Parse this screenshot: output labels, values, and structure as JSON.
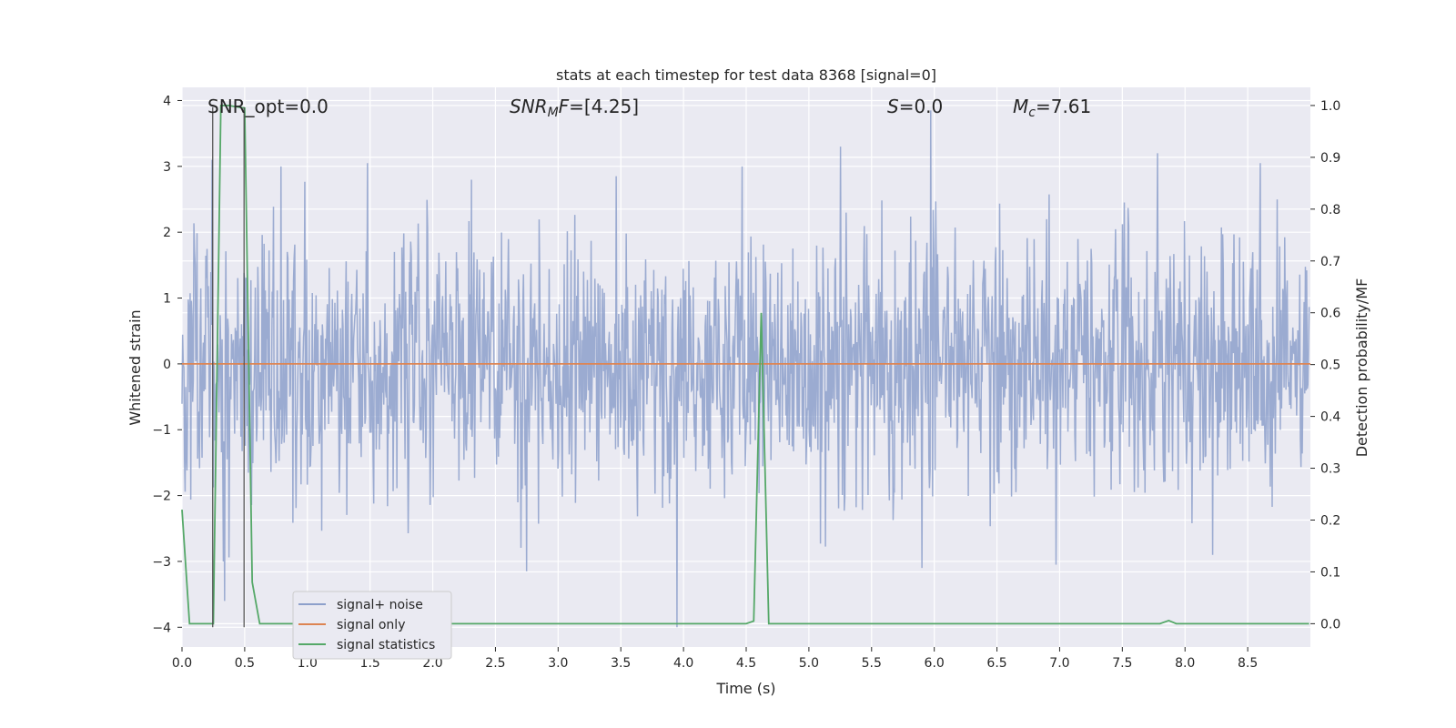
{
  "chart_data": {
    "type": "line",
    "title": "stats at each timestep for test data 8368 [signal=0]",
    "xlabel": "Time (s)",
    "ylabel": "Whitened strain",
    "y2label": "Detection probability/MF",
    "xlim": [
      0.0,
      9.0
    ],
    "ylim": [
      -4.3,
      4.2
    ],
    "y2lim": [
      -0.045,
      1.035
    ],
    "xticks": [
      0.0,
      0.5,
      1.0,
      1.5,
      2.0,
      2.5,
      3.0,
      3.5,
      4.0,
      4.5,
      5.0,
      5.5,
      6.0,
      6.5,
      7.0,
      7.5,
      8.0,
      8.5
    ],
    "xtick_labels": [
      "0.0",
      "0.5",
      "1.0",
      "1.5",
      "2.0",
      "2.5",
      "3.0",
      "3.5",
      "4.0",
      "4.5",
      "5.0",
      "5.5",
      "6.0",
      "6.5",
      "7.0",
      "7.5",
      "8.0",
      "8.5"
    ],
    "yticks": [
      -4,
      -3,
      -2,
      -1,
      0,
      1,
      2,
      3,
      4
    ],
    "ytick_labels": [
      "−4",
      "−3",
      "−2",
      "−1",
      "0",
      "1",
      "2",
      "3",
      "4"
    ],
    "y2ticks": [
      0.0,
      0.1,
      0.2,
      0.3,
      0.4,
      0.5,
      0.6,
      0.7,
      0.8,
      0.9,
      1.0
    ],
    "y2tick_labels": [
      "0.0",
      "0.1",
      "0.2",
      "0.3",
      "0.4",
      "0.5",
      "0.6",
      "0.7",
      "0.8",
      "0.9",
      "1.0"
    ],
    "annotations": [
      {
        "text": "SNR_opt=0.0",
        "x": 0.2,
        "y": 3.87
      },
      {
        "text": "SNR_MF=[4.25]",
        "x": 2.6,
        "y": 3.87
      },
      {
        "text": "S=0.0",
        "x": 5.6,
        "y": 3.87
      },
      {
        "text": "M_c=7.61",
        "x": 6.6,
        "y": 3.87
      }
    ],
    "vertical_markers": [
      {
        "x": 0.245,
        "y_from": -4.0,
        "y_to": 3.9
      },
      {
        "x": 0.495,
        "y_from": -4.0,
        "y_to": 3.9
      }
    ],
    "series": [
      {
        "name": "signal+ noise",
        "axis": "left",
        "color": "#8da0cb",
        "noise": {
          "n_points": 1800,
          "sigma": 1.0,
          "seed": 8368,
          "t_max": 8.99
        },
        "spikes": [
          {
            "x": 0.24,
            "y": 3.1
          },
          {
            "x": 0.34,
            "y": -3.6
          },
          {
            "x": 1.48,
            "y": 3.05
          },
          {
            "x": 2.75,
            "y": -3.15
          },
          {
            "x": 3.95,
            "y": -4.0
          },
          {
            "x": 5.25,
            "y": 3.3
          },
          {
            "x": 5.97,
            "y": 3.85
          },
          {
            "x": 5.9,
            "y": -3.1
          },
          {
            "x": 6.97,
            "y": -3.05
          },
          {
            "x": 7.78,
            "y": 3.2
          },
          {
            "x": 8.22,
            "y": -2.9
          },
          {
            "x": 8.6,
            "y": 3.05
          }
        ]
      },
      {
        "name": "signal only",
        "axis": "left",
        "color": "#dd8452",
        "x": [
          0.0,
          9.0
        ],
        "y": [
          0.0,
          0.0
        ]
      },
      {
        "name": "signal statistics",
        "axis": "right",
        "color": "#55a868",
        "x": [
          0.0,
          0.06,
          0.18,
          0.25,
          0.31,
          0.37,
          0.5,
          0.56,
          0.62,
          0.68,
          4.5,
          4.56,
          4.62,
          4.68,
          4.74,
          7.8,
          7.87,
          7.93,
          8.99
        ],
        "y": [
          0.22,
          0.0,
          0.0,
          0.0,
          1.0,
          1.0,
          0.995,
          0.08,
          0.0,
          0.0,
          0.0,
          0.005,
          0.6,
          0.0,
          0.0,
          0.0,
          0.006,
          0.0,
          0.0
        ]
      }
    ],
    "legend": {
      "position": "lower-left",
      "entries": [
        "signal+ noise",
        "signal only",
        "signal statistics"
      ]
    }
  }
}
